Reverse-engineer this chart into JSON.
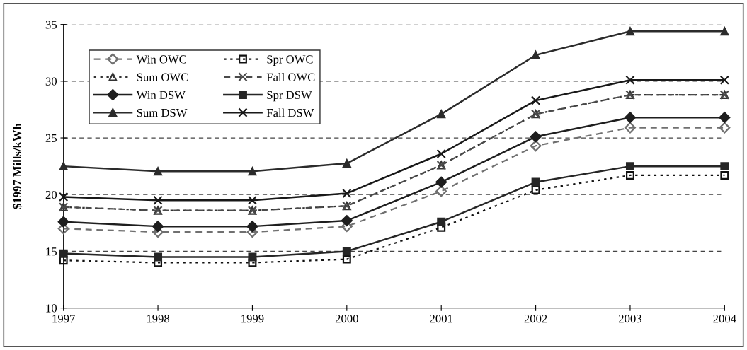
{
  "chart_data": {
    "type": "line",
    "ylabel": "$1997 Mills/kWh",
    "x": [
      1997,
      1998,
      1999,
      2000,
      2001,
      2002,
      2003,
      2004
    ],
    "xlim": [
      1997,
      2004
    ],
    "xticks": [
      1997,
      1998,
      1999,
      2000,
      2001,
      2002,
      2003,
      2004
    ],
    "ylim": [
      10,
      35
    ],
    "yticks": [
      10,
      15,
      20,
      25,
      30,
      35
    ],
    "grid": "y",
    "legend": "top left",
    "series": [
      {
        "name": "Win OWC",
        "color": "#707070",
        "marker": "diamond",
        "line_style": "dashed",
        "values": [
          17.0,
          16.7,
          16.7,
          17.2,
          20.3,
          24.3,
          25.9,
          25.9
        ]
      },
      {
        "name": "Spr OWC",
        "color": "#111111",
        "marker": "square",
        "line_style": "dotted",
        "values": [
          14.2,
          14.0,
          14.0,
          14.3,
          17.1,
          20.4,
          21.7,
          21.7
        ]
      },
      {
        "name": "Sum OWC",
        "color": "#333333",
        "marker": "triangle",
        "line_style": "dotted",
        "values": [
          18.9,
          18.6,
          18.6,
          19.0,
          22.6,
          27.1,
          28.8,
          28.8
        ]
      },
      {
        "name": "Fall OWC",
        "color": "#4a4a4a",
        "marker": "cross",
        "line_style": "dashed",
        "values": [
          18.9,
          18.6,
          18.6,
          19.0,
          22.6,
          27.1,
          28.8,
          28.8
        ]
      },
      {
        "name": "Win DSW",
        "color": "#1e1e1e",
        "marker": "diamond",
        "line_style": "solid",
        "values": [
          17.6,
          17.2,
          17.2,
          17.7,
          21.1,
          25.1,
          26.8,
          26.8
        ]
      },
      {
        "name": "Spr DSW",
        "color": "#262626",
        "marker": "square",
        "line_style": "solid",
        "values": [
          14.8,
          14.5,
          14.5,
          15.0,
          17.6,
          21.1,
          22.5,
          22.5
        ]
      },
      {
        "name": "Sum DSW",
        "color": "#2b2b2b",
        "marker": "triangle",
        "line_style": "solid",
        "values": [
          22.5,
          22.05,
          22.05,
          22.75,
          27.1,
          32.3,
          34.4,
          34.4
        ]
      },
      {
        "name": "Fall DSW",
        "color": "#181818",
        "marker": "cross",
        "line_style": "solid",
        "values": [
          19.8,
          19.5,
          19.5,
          20.1,
          23.6,
          28.3,
          30.1,
          30.1
        ]
      }
    ]
  }
}
